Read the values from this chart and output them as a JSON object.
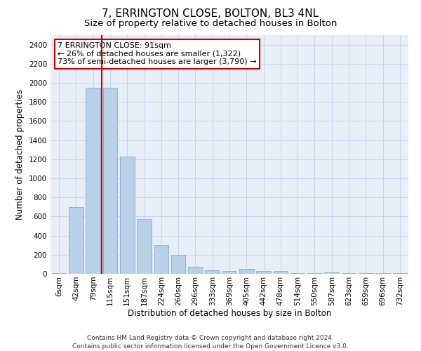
{
  "title": "7, ERRINGTON CLOSE, BOLTON, BL3 4NL",
  "subtitle": "Size of property relative to detached houses in Bolton",
  "xlabel": "Distribution of detached houses by size in Bolton",
  "ylabel": "Number of detached properties",
  "categories": [
    "6sqm",
    "42sqm",
    "79sqm",
    "115sqm",
    "151sqm",
    "187sqm",
    "224sqm",
    "260sqm",
    "296sqm",
    "333sqm",
    "369sqm",
    "405sqm",
    "442sqm",
    "478sqm",
    "514sqm",
    "550sqm",
    "587sqm",
    "623sqm",
    "659sqm",
    "696sqm",
    "732sqm"
  ],
  "values": [
    10,
    700,
    1950,
    1950,
    1230,
    575,
    305,
    200,
    75,
    40,
    30,
    55,
    30,
    30,
    10,
    10,
    15,
    5,
    5,
    10,
    10
  ],
  "bar_color": "#b8d0e8",
  "bar_edge_color": "#7aafd4",
  "vline_x": 2.5,
  "vline_color": "#cc0000",
  "annotation_text": "7 ERRINGTON CLOSE: 91sqm\n← 26% of detached houses are smaller (1,322)\n73% of semi-detached houses are larger (3,790) →",
  "annotation_box_color": "#ffffff",
  "annotation_box_edge": "#cc0000",
  "ylim": [
    0,
    2500
  ],
  "yticks": [
    0,
    200,
    400,
    600,
    800,
    1000,
    1200,
    1400,
    1600,
    1800,
    2000,
    2200,
    2400
  ],
  "grid_color": "#c8d4e8",
  "background_color": "#e8eef8",
  "footer_text": "Contains HM Land Registry data © Crown copyright and database right 2024.\nContains public sector information licensed under the Open Government Licence v3.0.",
  "title_fontsize": 11,
  "subtitle_fontsize": 9.5,
  "axis_label_fontsize": 8.5,
  "tick_fontsize": 7.5,
  "annotation_fontsize": 8,
  "footer_fontsize": 6.5
}
